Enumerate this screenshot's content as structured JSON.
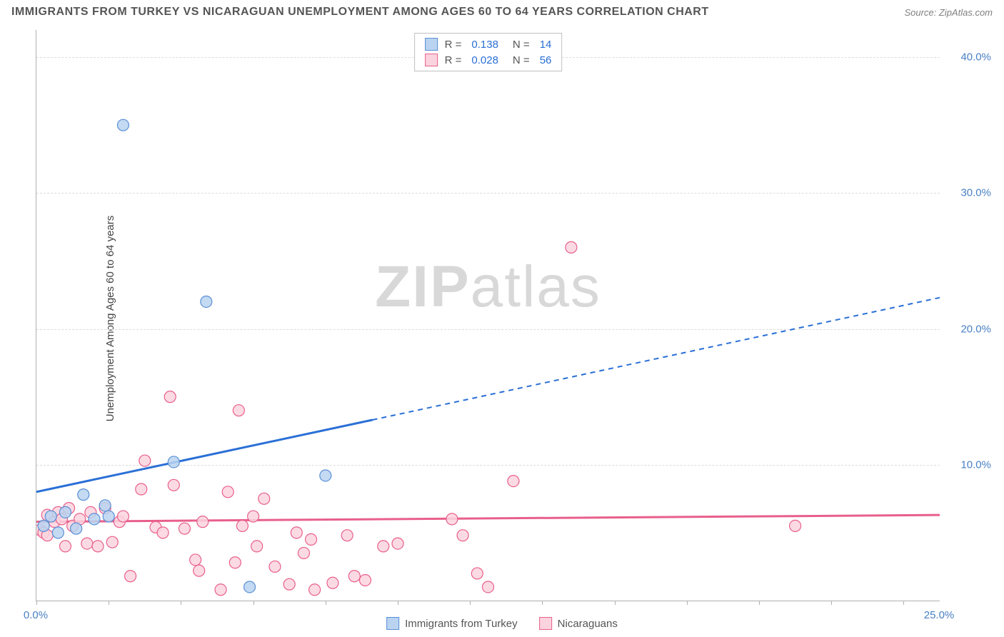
{
  "title": "IMMIGRANTS FROM TURKEY VS NICARAGUAN UNEMPLOYMENT AMONG AGES 60 TO 64 YEARS CORRELATION CHART",
  "source": "Source: ZipAtlas.com",
  "ylabel": "Unemployment Among Ages 60 to 64 years",
  "watermark_a": "ZIP",
  "watermark_b": "atlas",
  "chart": {
    "type": "scatter",
    "xlim": [
      0,
      25
    ],
    "ylim": [
      0,
      42
    ],
    "yticks": [
      10,
      20,
      30,
      40
    ],
    "ytick_labels": [
      "10.0%",
      "20.0%",
      "30.0%",
      "40.0%"
    ],
    "xticks": [
      0,
      2,
      4,
      6,
      8,
      10,
      12,
      14,
      16,
      18,
      20,
      22,
      24
    ],
    "xtick_labels": {
      "0": "0.0%",
      "25": "25.0%"
    },
    "grid_color": "#dcdcdc",
    "axis_color": "#b0b0b0",
    "tick_label_color": "#4a80c4",
    "series": [
      {
        "name": "Immigrants from Turkey",
        "marker_fill": "#b9d3f0",
        "marker_stroke": "#5a8fd6",
        "marker_r": 8,
        "line_color": "#2a6fd6",
        "line_width": 3,
        "trend_solid": {
          "x1": 0,
          "y1": 8.0,
          "x2": 9.3,
          "y2": 13.3
        },
        "trend_dash": {
          "x1": 9.3,
          "y1": 13.3,
          "x2": 25,
          "y2": 22.3
        },
        "stats": {
          "R": "0.138",
          "N": "14"
        },
        "points": [
          {
            "x": 0.2,
            "y": 5.5
          },
          {
            "x": 0.4,
            "y": 6.2
          },
          {
            "x": 0.6,
            "y": 5.0
          },
          {
            "x": 0.8,
            "y": 6.5
          },
          {
            "x": 1.1,
            "y": 5.3
          },
          {
            "x": 1.3,
            "y": 7.8
          },
          {
            "x": 1.6,
            "y": 6.0
          },
          {
            "x": 1.9,
            "y": 7.0
          },
          {
            "x": 2.0,
            "y": 6.2
          },
          {
            "x": 2.4,
            "y": 35.0
          },
          {
            "x": 3.8,
            "y": 10.2
          },
          {
            "x": 4.7,
            "y": 22.0
          },
          {
            "x": 5.9,
            "y": 1.0
          },
          {
            "x": 8.0,
            "y": 9.2
          }
        ]
      },
      {
        "name": "Nicaraguans",
        "marker_fill": "#fbd3de",
        "marker_stroke": "#e85f8b",
        "marker_r": 8,
        "line_color": "#e85f8b",
        "line_width": 3,
        "trend_solid": {
          "x1": 0,
          "y1": 5.8,
          "x2": 25,
          "y2": 6.3
        },
        "trend_dash": null,
        "stats": {
          "R": "0.028",
          "N": "56"
        },
        "points": [
          {
            "x": 0.1,
            "y": 5.2
          },
          {
            "x": 0.2,
            "y": 5.0
          },
          {
            "x": 0.3,
            "y": 4.8
          },
          {
            "x": 0.3,
            "y": 6.3
          },
          {
            "x": 0.5,
            "y": 5.8
          },
          {
            "x": 0.6,
            "y": 6.5
          },
          {
            "x": 0.7,
            "y": 6.0
          },
          {
            "x": 0.8,
            "y": 4.0
          },
          {
            "x": 0.9,
            "y": 6.8
          },
          {
            "x": 1.0,
            "y": 5.5
          },
          {
            "x": 1.2,
            "y": 6.0
          },
          {
            "x": 1.4,
            "y": 4.2
          },
          {
            "x": 1.5,
            "y": 6.5
          },
          {
            "x": 1.7,
            "y": 4.0
          },
          {
            "x": 1.9,
            "y": 6.8
          },
          {
            "x": 2.1,
            "y": 4.3
          },
          {
            "x": 2.3,
            "y": 5.8
          },
          {
            "x": 2.4,
            "y": 6.2
          },
          {
            "x": 2.6,
            "y": 1.8
          },
          {
            "x": 2.9,
            "y": 8.2
          },
          {
            "x": 3.0,
            "y": 10.3
          },
          {
            "x": 3.3,
            "y": 5.4
          },
          {
            "x": 3.5,
            "y": 5.0
          },
          {
            "x": 3.7,
            "y": 15.0
          },
          {
            "x": 3.8,
            "y": 8.5
          },
          {
            "x": 4.1,
            "y": 5.3
          },
          {
            "x": 4.4,
            "y": 3.0
          },
          {
            "x": 4.5,
            "y": 2.2
          },
          {
            "x": 4.6,
            "y": 5.8
          },
          {
            "x": 5.1,
            "y": 0.8
          },
          {
            "x": 5.3,
            "y": 8.0
          },
          {
            "x": 5.5,
            "y": 2.8
          },
          {
            "x": 5.6,
            "y": 14.0
          },
          {
            "x": 5.7,
            "y": 5.5
          },
          {
            "x": 6.0,
            "y": 6.2
          },
          {
            "x": 6.1,
            "y": 4.0
          },
          {
            "x": 6.3,
            "y": 7.5
          },
          {
            "x": 6.6,
            "y": 2.5
          },
          {
            "x": 7.0,
            "y": 1.2
          },
          {
            "x": 7.2,
            "y": 5.0
          },
          {
            "x": 7.4,
            "y": 3.5
          },
          {
            "x": 7.6,
            "y": 4.5
          },
          {
            "x": 7.7,
            "y": 0.8
          },
          {
            "x": 8.2,
            "y": 1.3
          },
          {
            "x": 8.6,
            "y": 4.8
          },
          {
            "x": 8.8,
            "y": 1.8
          },
          {
            "x": 9.1,
            "y": 1.5
          },
          {
            "x": 9.6,
            "y": 4.0
          },
          {
            "x": 10.0,
            "y": 4.2
          },
          {
            "x": 11.5,
            "y": 6.0
          },
          {
            "x": 11.8,
            "y": 4.8
          },
          {
            "x": 12.2,
            "y": 2.0
          },
          {
            "x": 12.5,
            "y": 1.0
          },
          {
            "x": 13.2,
            "y": 8.8
          },
          {
            "x": 14.8,
            "y": 26.0
          },
          {
            "x": 21.0,
            "y": 5.5
          }
        ]
      }
    ],
    "r_label": "R  =",
    "n_label": "N  ="
  }
}
